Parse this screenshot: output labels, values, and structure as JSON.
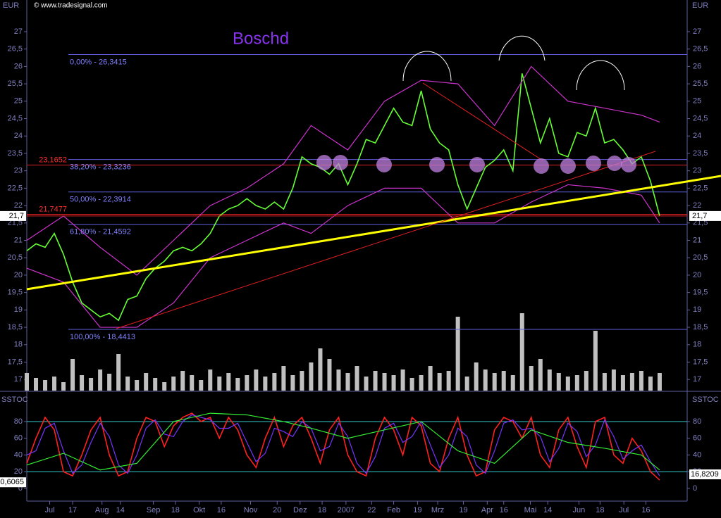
{
  "chart_data": [
    {
      "type": "line",
      "title": "Boschd",
      "source": "© www.tradesignal.com",
      "unit": "EUR",
      "x": [
        0,
        1,
        2,
        3,
        4,
        5,
        6,
        7,
        8,
        9,
        10,
        11,
        12,
        13,
        14,
        15,
        16,
        17,
        18,
        19,
        20,
        21,
        22,
        23,
        24,
        25,
        26,
        27,
        28,
        29,
        30,
        31,
        32,
        33,
        34,
        35,
        36,
        37,
        38,
        39,
        40,
        41,
        42,
        43,
        44,
        45,
        46,
        47,
        48,
        49,
        50,
        51,
        52,
        53,
        54,
        55,
        56,
        57,
        58,
        59,
        60,
        61,
        62,
        63,
        64,
        65,
        66,
        67,
        68,
        69
      ],
      "xlim": [
        0,
        72
      ],
      "xticks": [
        {
          "value": 2.5,
          "label": "Jul"
        },
        {
          "value": 5,
          "label": "17"
        },
        {
          "value": 8.2,
          "label": "Aug"
        },
        {
          "value": 10.2,
          "label": "14"
        },
        {
          "value": 13.8,
          "label": "Sep"
        },
        {
          "value": 16.2,
          "label": "18"
        },
        {
          "value": 18.8,
          "label": "Okt"
        },
        {
          "value": 21.2,
          "label": "16"
        },
        {
          "value": 24.4,
          "label": "Nov"
        },
        {
          "value": 27.3,
          "label": "20"
        },
        {
          "value": 29.8,
          "label": "Dez"
        },
        {
          "value": 32.2,
          "label": "18"
        },
        {
          "value": 34.8,
          "label": "2007"
        },
        {
          "value": 37.6,
          "label": "22"
        },
        {
          "value": 40,
          "label": "Feb"
        },
        {
          "value": 42.6,
          "label": "19"
        },
        {
          "value": 44.8,
          "label": "Mrz"
        },
        {
          "value": 47.6,
          "label": "19"
        },
        {
          "value": 50.2,
          "label": "Apr"
        },
        {
          "value": 52,
          "label": "16"
        },
        {
          "value": 54.9,
          "label": "Mai"
        },
        {
          "value": 56.8,
          "label": "14"
        },
        {
          "value": 60.2,
          "label": "Jun"
        },
        {
          "value": 62.5,
          "label": "18"
        },
        {
          "value": 65.1,
          "label": "Jul"
        },
        {
          "value": 67.5,
          "label": "16"
        }
      ],
      "ylim": [
        16.68,
        27.91
      ],
      "yticks": [
        17,
        {
          "value": 17.5,
          "label": "17,5"
        },
        18,
        {
          "value": 18.5,
          "label": "18,5"
        },
        19,
        {
          "value": 19.5,
          "label": "19,5"
        },
        20,
        {
          "value": 20.5,
          "label": "20,5"
        },
        21,
        {
          "value": 21.5,
          "label": "21,5"
        },
        22,
        {
          "value": 22.5,
          "label": "22,5"
        },
        23,
        {
          "value": 23.5,
          "label": "23,5"
        },
        24,
        {
          "value": 24.5,
          "label": "24,5"
        },
        25,
        {
          "value": 25.5,
          "label": "25,5"
        },
        26,
        {
          "value": 26.5,
          "label": "26,5"
        },
        27
      ],
      "series": [
        {
          "color": "#66ff33",
          "values": [
            20.7,
            20.9,
            20.8,
            21.2,
            20.6,
            19.8,
            19.2,
            19.0,
            18.8,
            18.9,
            18.7,
            19.3,
            19.4,
            19.9,
            20.2,
            20.4,
            20.7,
            20.8,
            20.7,
            20.9,
            21.2,
            21.7,
            21.9,
            22.0,
            22.2,
            22.0,
            21.9,
            22.1,
            21.9,
            22.5,
            23.4,
            23.2,
            23.1,
            22.9,
            23.2,
            22.6,
            23.2,
            23.9,
            23.8,
            24.3,
            24.8,
            24.4,
            24.3,
            25.3,
            24.2,
            23.8,
            23.6,
            22.6,
            21.9,
            22.5,
            23.1,
            23.3,
            23.6,
            23.0,
            25.8,
            24.8,
            23.8,
            24.5,
            23.5,
            23.4,
            24.1,
            24.0,
            24.8,
            23.8,
            23.9,
            23.6,
            23.2,
            23.4,
            22.7,
            21.7
          ]
        },
        {
          "color": "#cc33cc",
          "x": [
            0,
            4,
            8,
            12,
            16,
            20,
            24,
            28,
            31,
            35,
            39,
            43,
            47,
            51,
            55,
            59,
            63,
            67,
            69
          ],
          "values": [
            21.0,
            21.7,
            20.8,
            20.0,
            21.0,
            22.0,
            22.5,
            23.2,
            24.3,
            23.6,
            25.0,
            25.6,
            25.5,
            24.3,
            26.0,
            25.0,
            24.8,
            24.6,
            24.4
          ]
        },
        {
          "color": "#cc33cc",
          "x": [
            0,
            4,
            8,
            12,
            16,
            20,
            24,
            28,
            31,
            35,
            39,
            43,
            47,
            51,
            55,
            59,
            63,
            67,
            69
          ],
          "values": [
            20.2,
            19.8,
            18.5,
            18.5,
            19.2,
            20.5,
            21.0,
            21.5,
            21.2,
            22.0,
            22.5,
            22.5,
            21.5,
            21.5,
            22.1,
            22.6,
            22.5,
            22.3,
            21.5
          ]
        }
      ],
      "levels": [
        {
          "value": 26.3415,
          "label": "0,00% - 26,3415"
        },
        {
          "value": 23.3236,
          "label": "38,20% - 23,3236"
        },
        {
          "value": 22.3914,
          "label": "50,00% - 22,3914"
        },
        {
          "value": 21.4592,
          "label": "61,80% - 21,4592"
        },
        {
          "value": 18.4413,
          "label": "100,00% - 18,4413"
        }
      ],
      "level_color": "#6060e0",
      "marks": [
        {
          "value": 23.1652,
          "label": "23,1652"
        },
        {
          "value": 21.7477,
          "label": "21,7477"
        }
      ],
      "mark_color": "#e02020",
      "last": {
        "value": 21.7,
        "label": "21,7"
      },
      "volume": {
        "color": "#c0c0c0",
        "ylim": [
          0,
          120
        ],
        "values": [
          25,
          18,
          15,
          20,
          12,
          45,
          22,
          18,
          30,
          24,
          52,
          20,
          15,
          25,
          18,
          12,
          20,
          28,
          22,
          15,
          30,
          20,
          25,
          18,
          22,
          30,
          20,
          25,
          35,
          22,
          28,
          40,
          60,
          45,
          30,
          25,
          35,
          20,
          28,
          25,
          22,
          30,
          18,
          22,
          35,
          25,
          28,
          105,
          20,
          40,
          30,
          25,
          28,
          22,
          110,
          35,
          45,
          30,
          25,
          20,
          22,
          28,
          85,
          25,
          30,
          22,
          25,
          28,
          20,
          25
        ]
      }
    },
    {
      "type": "line",
      "title": "SSTOC",
      "ylim": [
        -15.2,
        114.5
      ],
      "yticks": [
        0,
        20,
        40,
        60,
        80
      ],
      "series": [
        {
          "color": "#ff2020",
          "values": [
            30,
            60,
            85,
            70,
            20,
            15,
            40,
            70,
            85,
            40,
            15,
            20,
            60,
            85,
            80,
            50,
            75,
            85,
            90,
            80,
            85,
            60,
            85,
            70,
            40,
            25,
            60,
            85,
            50,
            75,
            85,
            60,
            30,
            70,
            85,
            40,
            20,
            15,
            60,
            85,
            70,
            40,
            85,
            75,
            30,
            20,
            60,
            85,
            40,
            15,
            20,
            70,
            85,
            80,
            60,
            85,
            40,
            25,
            70,
            85,
            50,
            25,
            80,
            85,
            40,
            30,
            60,
            45,
            20,
            10
          ]
        },
        {
          "color": "#7733ff",
          "values": [
            40,
            45,
            72,
            78,
            45,
            18,
            28,
            55,
            78,
            62,
            28,
            18,
            40,
            72,
            82,
            65,
            62,
            80,
            88,
            85,
            82,
            72,
            72,
            78,
            55,
            32,
            42,
            72,
            68,
            62,
            80,
            72,
            45,
            50,
            78,
            62,
            30,
            18,
            38,
            72,
            78,
            55,
            62,
            80,
            52,
            25,
            40,
            72,
            62,
            28,
            18,
            45,
            78,
            82,
            70,
            72,
            62,
            32,
            48,
            78,
            68,
            38,
            52,
            82,
            62,
            35,
            45,
            52,
            32,
            15
          ]
        },
        {
          "color": "#33ee33",
          "x": [
            0,
            4,
            8,
            12,
            16,
            20,
            24,
            28,
            31,
            35,
            39,
            43,
            47,
            51,
            55,
            59,
            63,
            67,
            69
          ],
          "values": [
            28,
            42,
            22,
            30,
            80,
            90,
            88,
            80,
            72,
            60,
            70,
            80,
            45,
            30,
            70,
            55,
            48,
            40,
            22
          ]
        }
      ],
      "levels": [
        {
          "value": 80
        },
        {
          "value": 20
        }
      ],
      "level_color": "#33cccc",
      "last_right": {
        "value": 16.8209,
        "label": "16,8209"
      },
      "last_left": {
        "value": 0.6065,
        "label": "0,6065"
      }
    }
  ]
}
